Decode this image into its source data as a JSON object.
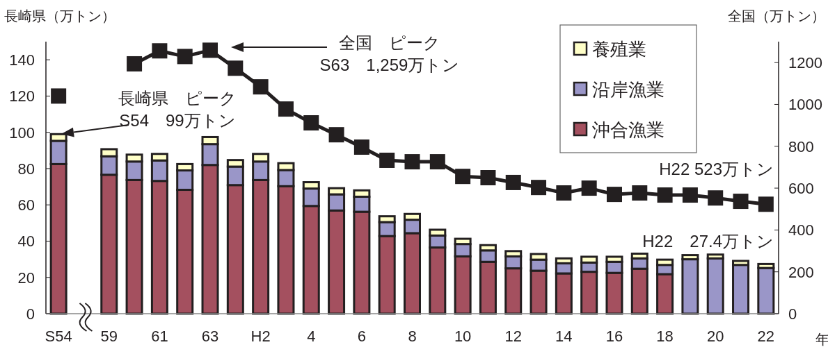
{
  "chart_data": {
    "type": "bar",
    "stacked": true,
    "categories": [
      "S54",
      null,
      "59",
      null,
      "61",
      null,
      "63",
      null,
      "H2",
      null,
      "4",
      null,
      "6",
      null,
      "8",
      null,
      "10",
      null,
      "12",
      null,
      "14",
      null,
      "16",
      null,
      "18",
      null,
      "20",
      null,
      "22"
    ],
    "series": [
      {
        "name": "沖合漁業",
        "color": "#a4505f",
        "values": [
          82.5,
          null,
          76.6,
          73.7,
          73.2,
          68.3,
          82.0,
          70.9,
          73.7,
          70.3,
          59.4,
          56.9,
          56.2,
          42.8,
          44.4,
          36.5,
          31.6,
          28.6,
          25.0,
          23.7,
          22.2,
          23.1,
          22.5,
          24.8,
          21.8,
          null,
          null,
          null,
          null
        ]
      },
      {
        "name": "沿岸漁業",
        "color": "#9a96c8",
        "values": [
          12.8,
          null,
          10.2,
          10.2,
          11.3,
          10.7,
          11.5,
          10.2,
          10.2,
          8.9,
          9.6,
          8.9,
          8.3,
          7.7,
          7.4,
          6.6,
          6.8,
          6.3,
          6.6,
          6.1,
          5.6,
          5.1,
          6.1,
          5.7,
          5.1,
          30.0,
          30.5,
          26.9,
          25.2
        ]
      },
      {
        "name": "養殖業",
        "color": "#ffffc8",
        "values": [
          3.7,
          null,
          3.9,
          3.8,
          3.6,
          3.5,
          3.9,
          3.6,
          4.2,
          3.8,
          3.5,
          3.4,
          3.5,
          3.2,
          3.2,
          3.2,
          2.9,
          2.9,
          2.9,
          3.1,
          2.7,
          3.2,
          2.8,
          2.6,
          2.9,
          2.3,
          2.1,
          2.2,
          2.2
        ]
      },
      {
        "type": "line",
        "axis": "y2",
        "color": "#231f20",
        "marker": "square",
        "values": [
          1040,
          null,
          null,
          1194,
          1256,
          1229,
          1259,
          1173,
          1084,
          978,
          912,
          855,
          796,
          733,
          726,
          726,
          656,
          650,
          627,
          603,
          577,
          600,
          570,
          577,
          567,
          567,
          553,
          537,
          523
        ]
      }
    ],
    "ylabel": "長崎県（万トン）",
    "y2label": "全国（万トン）",
    "xlabel": "年",
    "ylim": [
      0,
      150
    ],
    "yticks": [
      0,
      20,
      40,
      60,
      80,
      100,
      120,
      140
    ],
    "y2lim": [
      0,
      1300
    ],
    "y2ticks": [
      0,
      200,
      400,
      600,
      800,
      1000,
      1200
    ],
    "legend": "top right",
    "grid": false,
    "annotations": [
      "長崎県　ピーク\nS54　99万トン",
      "全国　ピーク\nS63　1,259万トン",
      "H22 523万トン",
      "H22　27.4万トン"
    ]
  }
}
